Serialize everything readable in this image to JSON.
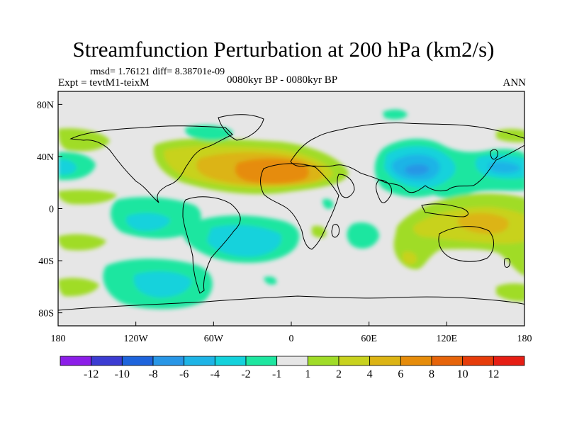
{
  "title": "Streamfunction Perturbation at 200 hPa (km2/s)",
  "stats_line": "rmsd= 1.76121 diff= 8.38701e-09",
  "experiment": "Expt = tevtM1-teixM",
  "period": "0080kyr BP - 0080kyr BP",
  "season": "ANN",
  "map": {
    "lon_range": [
      -180,
      180
    ],
    "lat_range": [
      -90,
      90
    ],
    "x_ticks": [
      {
        "lon": -180,
        "label": "180"
      },
      {
        "lon": -120,
        "label": "120W"
      },
      {
        "lon": -60,
        "label": "60W"
      },
      {
        "lon": 0,
        "label": "0"
      },
      {
        "lon": 60,
        "label": "60E"
      },
      {
        "lon": 120,
        "label": "120E"
      },
      {
        "lon": 180,
        "label": "180"
      }
    ],
    "y_ticks": [
      {
        "lat": 80,
        "label": "80N"
      },
      {
        "lat": 40,
        "label": "40N"
      },
      {
        "lat": 0,
        "label": "0"
      },
      {
        "lat": -40,
        "label": "40S"
      },
      {
        "lat": -80,
        "label": "80S"
      }
    ]
  },
  "colorbar": {
    "labels": [
      "-12",
      "-10",
      "-8",
      "-6",
      "-4",
      "-2",
      "-1",
      "1",
      "2",
      "4",
      "6",
      "8",
      "10",
      "12"
    ],
    "colors": [
      "#8c1ee8",
      "#3c3cd2",
      "#1e64dc",
      "#2896e6",
      "#1eb4e6",
      "#14d2dc",
      "#1ee6a0",
      "#e6e6e6",
      "#a0dc28",
      "#c8d21e",
      "#dcb414",
      "#e68c0a",
      "#e6640a",
      "#e63c0a",
      "#e61e14"
    ]
  }
}
